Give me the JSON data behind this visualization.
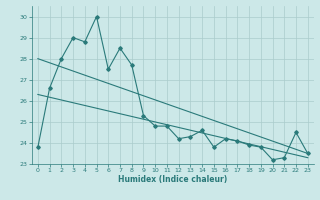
{
  "xlabel": "Humidex (Indice chaleur)",
  "x": [
    0,
    1,
    2,
    3,
    4,
    5,
    6,
    7,
    8,
    9,
    10,
    11,
    12,
    13,
    14,
    15,
    16,
    17,
    18,
    19,
    20,
    21,
    22,
    23
  ],
  "y_line": [
    23.8,
    26.6,
    28.0,
    29.0,
    28.8,
    30.0,
    27.5,
    28.5,
    27.7,
    25.3,
    24.8,
    24.8,
    24.2,
    24.3,
    24.6,
    23.8,
    24.2,
    24.1,
    23.9,
    23.8,
    23.2,
    23.3,
    24.5,
    23.5
  ],
  "trend1_x": [
    0,
    23
  ],
  "trend1_y": [
    28.0,
    23.5
  ],
  "trend2_x": [
    0,
    23
  ],
  "trend2_y": [
    26.3,
    23.3
  ],
  "background_color": "#cce8e8",
  "grid_color": "#aacccc",
  "line_color": "#2a7a7a",
  "ylim": [
    23,
    30.5
  ],
  "yticks": [
    23,
    24,
    25,
    26,
    27,
    28,
    29,
    30
  ],
  "xlim": [
    -0.5,
    23.5
  ],
  "xticks": [
    0,
    1,
    2,
    3,
    4,
    5,
    6,
    7,
    8,
    9,
    10,
    11,
    12,
    13,
    14,
    15,
    16,
    17,
    18,
    19,
    20,
    21,
    22,
    23
  ]
}
